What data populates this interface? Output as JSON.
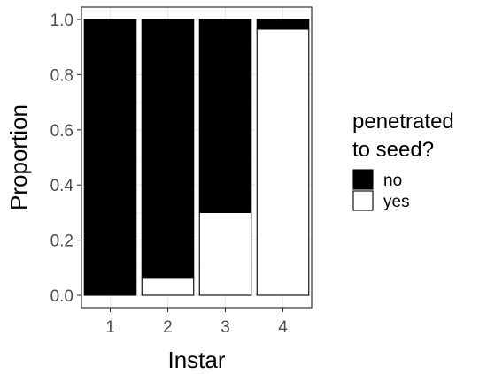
{
  "chart_data": {
    "type": "bar",
    "stacked": true,
    "xlabel": "Instar",
    "ylabel": "Proportion",
    "ylim": [
      0,
      1
    ],
    "y_ticks": [
      "0.0",
      "0.2",
      "0.4",
      "0.6",
      "0.8",
      "1.0"
    ],
    "categories": [
      "1",
      "2",
      "3",
      "4"
    ],
    "series": [
      {
        "name": "yes",
        "color": "#ffffff",
        "values": [
          0.0,
          0.065,
          0.3,
          0.965
        ]
      },
      {
        "name": "no",
        "color": "#000000",
        "values": [
          1.0,
          0.935,
          0.7,
          0.035
        ]
      }
    ],
    "grid": true,
    "legend": {
      "title_line1": "penetrated",
      "title_line2": "to seed?",
      "placement": "right",
      "items": [
        {
          "label": "no",
          "color": "#000000"
        },
        {
          "label": "yes",
          "color": "#ffffff"
        }
      ]
    }
  }
}
